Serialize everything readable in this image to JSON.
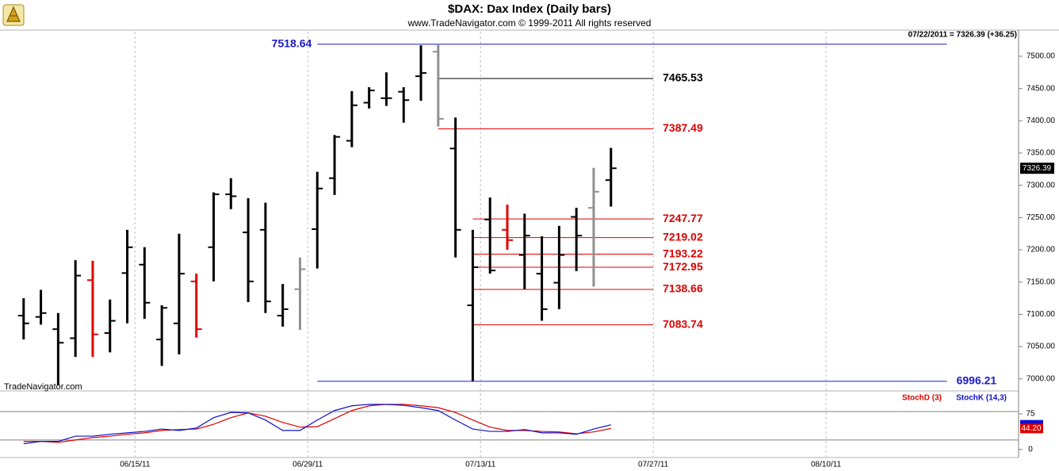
{
  "chart_data": [
    {
      "type": "ohlc",
      "title": "$DAX:  Dax Index  (Daily bars)",
      "subtitle": "www.TradeNavigator.com © 1999-2011 All rights reserved",
      "status": "07/22/2011 = 7326.39 (+36.25)",
      "watermark": "TradeNavigator.com",
      "price_tag": "7326.39",
      "x": [
        "06/06/11",
        "06/07/11",
        "06/08/11",
        "06/09/11",
        "06/10/11",
        "06/13/11",
        "06/14/11",
        "06/15/11",
        "06/16/11",
        "06/17/11",
        "06/20/11",
        "06/21/11",
        "06/22/11",
        "06/23/11",
        "06/24/11",
        "06/27/11",
        "06/28/11",
        "06/29/11",
        "06/30/11",
        "07/01/11",
        "07/04/11",
        "07/05/11",
        "07/06/11",
        "07/07/11",
        "07/08/11",
        "07/11/11",
        "07/12/11",
        "07/13/11",
        "07/14/11",
        "07/15/11",
        "07/18/11",
        "07/19/11",
        "07/20/11",
        "07/21/11",
        "07/22/11"
      ],
      "open": [
        7098,
        7096,
        7077,
        7063,
        7153,
        7071,
        7164,
        7177,
        7061,
        7086,
        7151,
        7204,
        7286,
        7227,
        7231,
        7098,
        7139,
        7232,
        7311,
        7369,
        7428,
        7435,
        7445,
        7469,
        7507,
        7357,
        7114,
        7247,
        7231,
        7192,
        7163,
        7149,
        7251,
        7265,
        7308
      ],
      "high": [
        7125,
        7138,
        7102,
        7184,
        7183,
        7123,
        7231,
        7204,
        7114,
        7225,
        7163,
        7289,
        7311,
        7280,
        7273,
        7147,
        7188,
        7321,
        7378,
        7446,
        7452,
        7475,
        7452,
        7517,
        7518.64,
        7405,
        7231,
        7281,
        7270,
        7256,
        7221,
        7237,
        7265,
        7327,
        7358
      ],
      "low": [
        7061,
        7084,
        6990,
        7034,
        7034,
        7041,
        7086,
        7093,
        7020,
        7038,
        7064,
        7151,
        7263,
        7119,
        7102,
        7081,
        7076,
        7171,
        7285,
        7359,
        7419,
        7423,
        7397,
        7431,
        7391,
        7188,
        6996.21,
        7163,
        7200,
        7139,
        7090,
        7108,
        7167,
        7143,
        7267
      ],
      "close": [
        7086,
        7102,
        7056,
        7160,
        7069,
        7090,
        7204,
        7118,
        7110,
        7163,
        7077,
        7286,
        7283,
        7151,
        7120,
        7108,
        7170,
        7295,
        7375,
        7424,
        7447,
        7435,
        7432,
        7474,
        7403,
        7231,
        7173,
        7168,
        7215,
        7222,
        7108,
        7192,
        7222,
        7290,
        7326.39
      ],
      "bar_colors": [
        "#000000",
        "#000000",
        "#000000",
        "#000000",
        "#e00000",
        "#000000",
        "#000000",
        "#000000",
        "#000000",
        "#000000",
        "#e00000",
        "#000000",
        "#000000",
        "#000000",
        "#000000",
        "#000000",
        "#909090",
        "#000000",
        "#000000",
        "#000000",
        "#000000",
        "#000000",
        "#000000",
        "#000000",
        "#909090",
        "#000000",
        "#000000",
        "#000000",
        "#e00000",
        "#000000",
        "#000000",
        "#000000",
        "#000000",
        "#909090",
        "#000000"
      ],
      "levels": [
        {
          "value": 7518.64,
          "color": "#1a1acc",
          "from": "06/29/11",
          "to": "08/19/11",
          "label_side": "left"
        },
        {
          "value": 7465.53,
          "color": "#000000",
          "from": "07/08/11",
          "to": "07/27/11",
          "label_side": "right"
        },
        {
          "value": 7387.49,
          "color": "#e00000",
          "from": "07/08/11",
          "to": "07/27/11",
          "label_side": "right"
        },
        {
          "value": 7247.77,
          "color": "#e00000",
          "from": "07/12/11",
          "to": "07/27/11",
          "label_side": "right"
        },
        {
          "value": 7219.02,
          "color": "#e00000",
          "from": "07/12/11",
          "to": "07/27/11",
          "label_side": "right"
        },
        {
          "value": 7193.22,
          "color": "#e00000",
          "from": "07/12/11",
          "to": "07/27/11",
          "label_side": "right"
        },
        {
          "value": 7172.95,
          "color": "#e00000",
          "from": "07/12/11",
          "to": "07/27/11",
          "label_side": "right"
        },
        {
          "value": 7138.66,
          "color": "#e00000",
          "from": "07/12/11",
          "to": "07/27/11",
          "label_side": "right"
        },
        {
          "value": 7083.74,
          "color": "#e00000",
          "from": "07/12/11",
          "to": "07/27/11",
          "label_side": "right"
        },
        {
          "value": 6996.21,
          "color": "#1a1acc",
          "from": "06/29/11",
          "to": "08/19/11",
          "label_side": "right"
        }
      ],
      "xlim": [
        "06/03/11",
        "08/24/11"
      ],
      "ylim": [
        6985,
        7538
      ],
      "yticks": [
        {
          "value": 7000,
          "label": "7000.00"
        },
        {
          "value": 7050,
          "label": "7050.00"
        },
        {
          "value": 7100,
          "label": "7100.00"
        },
        {
          "value": 7150,
          "label": "7150.00"
        },
        {
          "value": 7200,
          "label": "7200.00"
        },
        {
          "value": 7250,
          "label": "7250.00"
        },
        {
          "value": 7300,
          "label": "7300.00"
        },
        {
          "value": 7350,
          "label": "7350.00"
        },
        {
          "value": 7400,
          "label": "7400.00"
        },
        {
          "value": 7450,
          "label": "7450.00"
        },
        {
          "value": 7500,
          "label": "7500.00"
        }
      ]
    },
    {
      "type": "line",
      "x": [
        "06/06/11",
        "06/07/11",
        "06/08/11",
        "06/09/11",
        "06/10/11",
        "06/13/11",
        "06/14/11",
        "06/15/11",
        "06/16/11",
        "06/17/11",
        "06/20/11",
        "06/21/11",
        "06/22/11",
        "06/23/11",
        "06/24/11",
        "06/27/11",
        "06/28/11",
        "06/29/11",
        "06/30/11",
        "07/01/11",
        "07/04/11",
        "07/05/11",
        "07/06/11",
        "07/07/11",
        "07/08/11",
        "07/11/11",
        "07/12/11",
        "07/13/11",
        "07/14/11",
        "07/15/11",
        "07/18/11",
        "07/19/11",
        "07/20/11",
        "07/21/11",
        "07/22/11"
      ],
      "series": [
        {
          "name": "StochD (3)",
          "color": "#e00000",
          "values": [
            17,
            17,
            15,
            20,
            25,
            28,
            32,
            35,
            40,
            42,
            43,
            53,
            67,
            77,
            70,
            57,
            47,
            48,
            65,
            82,
            92,
            95,
            95,
            92,
            88,
            78,
            62,
            47,
            40,
            40,
            38,
            37,
            33,
            37,
            44.2
          ]
        },
        {
          "name": "StochK (14,3)",
          "color": "#1010cc",
          "values": [
            12,
            17,
            17,
            28,
            28,
            32,
            35,
            38,
            43,
            40,
            45,
            67,
            78,
            77,
            62,
            40,
            40,
            62,
            82,
            92,
            95,
            95,
            93,
            88,
            82,
            62,
            43,
            38,
            38,
            42,
            35,
            35,
            32,
            43,
            52
          ]
        }
      ],
      "tag": "44.20",
      "levels": [
        20,
        80
      ],
      "xlim": [
        "06/03/11",
        "08/24/11"
      ],
      "ylim": [
        -17,
        120
      ],
      "yticks": [
        0,
        75
      ],
      "xticks": [
        "06/15/11",
        "06/29/11",
        "07/13/11",
        "07/27/11",
        "08/10/11"
      ]
    }
  ]
}
